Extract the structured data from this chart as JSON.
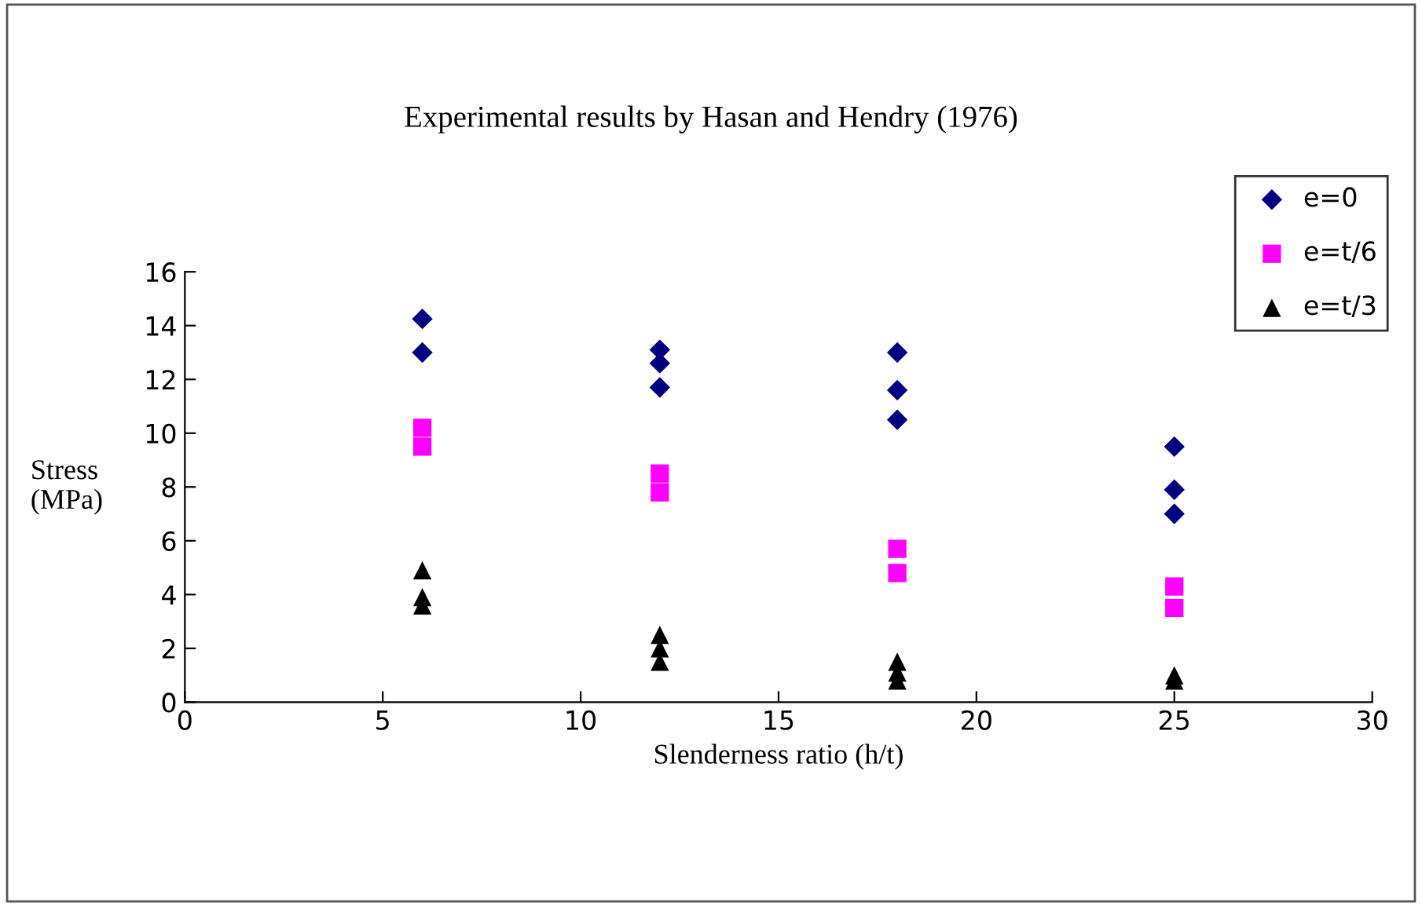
{
  "chart_data": {
    "type": "scatter",
    "title": "Experimental results by Hasan and Hendry (1976)",
    "xlabel": "Slenderness ratio (h/t)",
    "ylabel": "Stress\n(MPa)",
    "xlim": [
      0,
      30
    ],
    "xticks": [
      0,
      5,
      10,
      15,
      20,
      25,
      30
    ],
    "ylim": [
      0,
      16
    ],
    "yticks": [
      0,
      2,
      4,
      6,
      8,
      10,
      12,
      14,
      16
    ],
    "grid": false,
    "legend": "top right",
    "series": [
      {
        "name": "e=0",
        "color": "#000080",
        "marker": "diamond",
        "x": [
          6,
          6,
          12,
          12,
          12,
          18,
          18,
          18,
          25,
          25,
          25
        ],
        "values": [
          14.25,
          13.0,
          13.1,
          12.6,
          11.7,
          13.0,
          11.6,
          10.5,
          9.5,
          7.9,
          7.0
        ]
      },
      {
        "name": "e=t/6",
        "color": "#ff00ff",
        "marker": "square",
        "x": [
          6,
          6,
          12,
          12,
          18,
          18,
          25,
          25
        ],
        "values": [
          10.2,
          9.5,
          8.5,
          7.8,
          5.7,
          4.8,
          4.3,
          3.5
        ]
      },
      {
        "name": "e=t/3",
        "color": "#000000",
        "marker": "triangle",
        "x": [
          6,
          6,
          6,
          12,
          12,
          12,
          18,
          18,
          18,
          25,
          25
        ],
        "values": [
          4.9,
          3.9,
          3.6,
          2.5,
          2.0,
          1.5,
          1.5,
          1.1,
          0.8,
          1.0,
          0.8
        ]
      }
    ]
  }
}
